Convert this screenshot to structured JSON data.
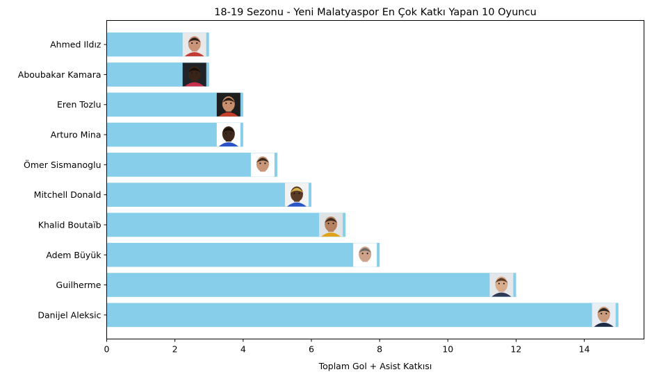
{
  "chart_data": {
    "type": "bar",
    "orientation": "horizontal",
    "title": "18-19 Sezonu - Yeni Malatyaspor En Çok Katkı Yapan 10 Oyuncu",
    "xlabel": "Toplam Gol + Asist Katkısı",
    "ylabel": "",
    "xlim": [
      0,
      15.75
    ],
    "xticks": [
      0,
      2,
      4,
      6,
      8,
      10,
      12,
      14
    ],
    "grid": false,
    "bar_color": "#87CEEB",
    "categories": [
      "Danijel Aleksic",
      "Guilherme",
      "Adem Büyük",
      "Khalid Boutaïb",
      "Mitchell Donald",
      "Ömer Sismanoglu",
      "Arturo Mina",
      "Eren Tozlu",
      "Aboubakar Kamara",
      "Ahmed Ildız"
    ],
    "values": [
      15,
      12,
      8,
      7,
      6,
      5,
      4,
      4,
      3,
      3
    ],
    "player_photos": [
      {
        "skin": "#c99a7c",
        "hair": "#2a2320",
        "shirt": "#1e2b45",
        "bg": "#e8eef4"
      },
      {
        "skin": "#d8ab8a",
        "hair": "#5a3b25",
        "shirt": "#2d3a55",
        "bg": "#e4e6ea"
      },
      {
        "skin": "#cfa389",
        "hair": "#6b6b6b",
        "shirt": "#ffffff",
        "bg": "#ffffff"
      },
      {
        "skin": "#b7825f",
        "hair": "#3a2a20",
        "shirt": "#e0a21a",
        "bg": "#dfe3e6"
      },
      {
        "skin": "#5a3a26",
        "hair": "#d8b24a",
        "shirt": "#2a55c4",
        "bg": "#f2f2f2"
      },
      {
        "skin": "#c99677",
        "hair": "#3b2a20",
        "shirt": "#ffffff",
        "bg": "#ffffff"
      },
      {
        "skin": "#3e271b",
        "hair": "#1b120d",
        "shirt": "#2b52c9",
        "bg": "#ffffff"
      },
      {
        "skin": "#c98f6d",
        "hair": "#2b1d15",
        "shirt": "#c8402a",
        "bg": "#1e1e1e"
      },
      {
        "skin": "#3a2418",
        "hair": "#1a100b",
        "shirt": "#c9304a",
        "bg": "#1f2428"
      },
      {
        "skin": "#c99478",
        "hair": "#2f221b",
        "shirt": "#c43a35",
        "bg": "#e9e9e9"
      }
    ]
  }
}
